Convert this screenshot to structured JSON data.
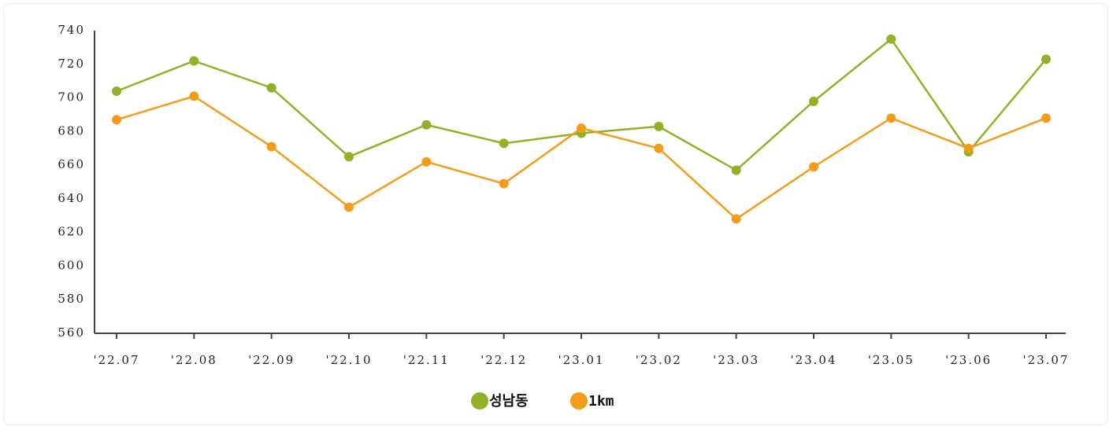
{
  "chart_data": {
    "type": "line",
    "categories": [
      "'22.07",
      "'22.08",
      "'22.09",
      "'22.10",
      "'22.11",
      "'22.12",
      "'23.01",
      "'23.02",
      "'23.03",
      "'23.04",
      "'23.05",
      "'23.06",
      "'23.07"
    ],
    "series": [
      {
        "name": "성남동",
        "color": "#92b126",
        "values": [
          704,
          722,
          706,
          665,
          684,
          673,
          679,
          683,
          657,
          698,
          735,
          668,
          723
        ]
      },
      {
        "name": "1km",
        "color": "#f39c19",
        "values": [
          687,
          701,
          671,
          635,
          662,
          649,
          682,
          670,
          628,
          659,
          688,
          670,
          688
        ]
      }
    ],
    "ylim": [
      560,
      740
    ],
    "yticks": [
      560,
      580,
      600,
      620,
      640,
      660,
      680,
      700,
      720,
      740
    ],
    "grid": false,
    "legend": "bottom"
  }
}
